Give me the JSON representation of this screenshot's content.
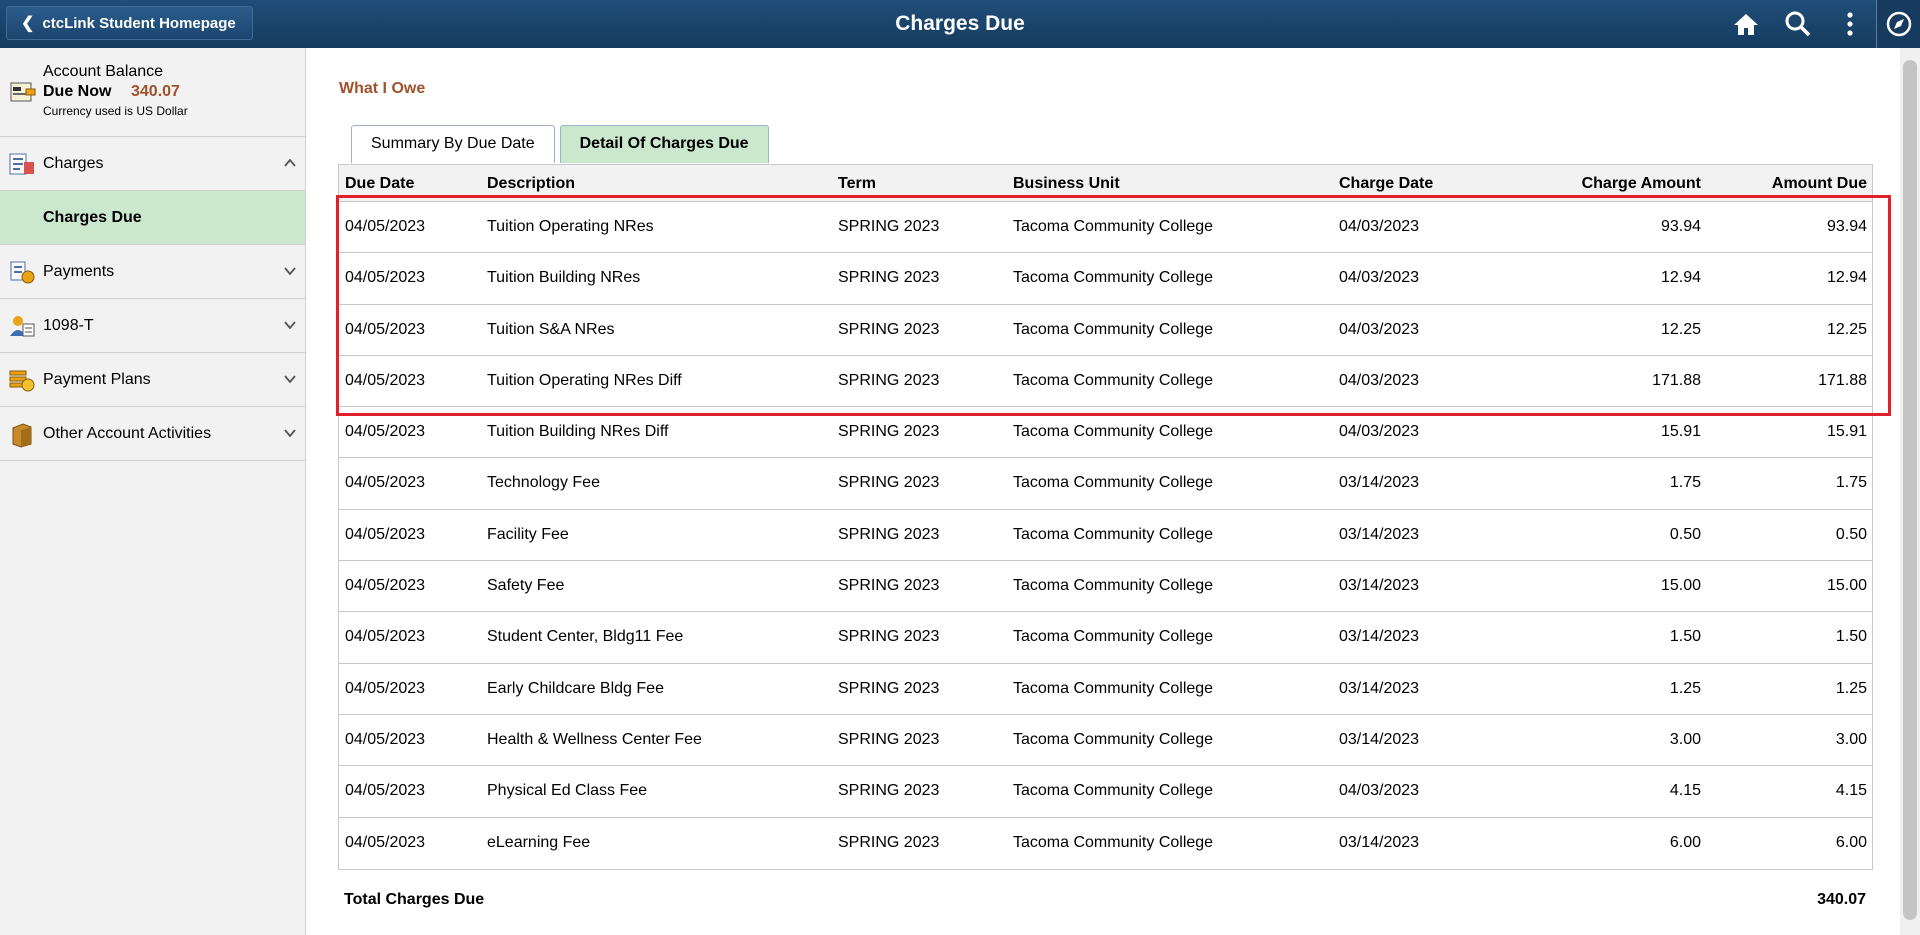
{
  "header": {
    "back_label": "ctcLink Student Homepage",
    "title": "Charges Due",
    "icons": [
      "home-icon",
      "search-icon",
      "more-vertical-icon",
      "navbar-compass-icon"
    ]
  },
  "sidebar": {
    "balance": {
      "title": "Account Balance",
      "due_now_label": "Due Now",
      "due_now_amount": "340.07",
      "currency_note": "Currency used is US Dollar"
    },
    "items": [
      {
        "label": "Charges",
        "icon": "charges-icon",
        "state": "expanded"
      },
      {
        "label": "Charges Due",
        "icon": "",
        "state": "selected"
      },
      {
        "label": "Payments",
        "icon": "payments-icon",
        "state": "collapsed"
      },
      {
        "label": "1098-T",
        "icon": "tax-form-icon",
        "state": "collapsed"
      },
      {
        "label": "Payment Plans",
        "icon": "payment-plans-icon",
        "state": "collapsed"
      },
      {
        "label": "Other Account Activities",
        "icon": "other-activities-icon",
        "state": "collapsed"
      }
    ]
  },
  "main": {
    "section_title": "What I Owe",
    "tabs": [
      {
        "label": "Summary By Due Date",
        "active": false
      },
      {
        "label": "Detail Of Charges Due",
        "active": true
      }
    ],
    "columns": [
      "Due Date",
      "Description",
      "Term",
      "Business Unit",
      "Charge Date",
      "Charge Amount",
      "Amount Due"
    ],
    "rows": [
      [
        "04/05/2023",
        "Tuition Operating NRes",
        "SPRING 2023",
        "Tacoma Community College",
        "04/03/2023",
        "93.94",
        "93.94"
      ],
      [
        "04/05/2023",
        "Tuition Building NRes",
        "SPRING 2023",
        "Tacoma Community College",
        "04/03/2023",
        "12.94",
        "12.94"
      ],
      [
        "04/05/2023",
        "Tuition S&A NRes",
        "SPRING 2023",
        "Tacoma Community College",
        "04/03/2023",
        "12.25",
        "12.25"
      ],
      [
        "04/05/2023",
        "Tuition Operating NRes Diff",
        "SPRING 2023",
        "Tacoma Community College",
        "04/03/2023",
        "171.88",
        "171.88"
      ],
      [
        "04/05/2023",
        "Tuition Building NRes Diff",
        "SPRING 2023",
        "Tacoma Community College",
        "04/03/2023",
        "15.91",
        "15.91"
      ],
      [
        "04/05/2023",
        "Technology Fee",
        "SPRING 2023",
        "Tacoma Community College",
        "03/14/2023",
        "1.75",
        "1.75"
      ],
      [
        "04/05/2023",
        "Facility Fee",
        "SPRING 2023",
        "Tacoma Community College",
        "03/14/2023",
        "0.50",
        "0.50"
      ],
      [
        "04/05/2023",
        "Safety Fee",
        "SPRING 2023",
        "Tacoma Community College",
        "03/14/2023",
        "15.00",
        "15.00"
      ],
      [
        "04/05/2023",
        "Student Center, Bldg11 Fee",
        "SPRING 2023",
        "Tacoma Community College",
        "03/14/2023",
        "1.50",
        "1.50"
      ],
      [
        "04/05/2023",
        "Early Childcare Bldg Fee",
        "SPRING 2023",
        "Tacoma Community College",
        "03/14/2023",
        "1.25",
        "1.25"
      ],
      [
        "04/05/2023",
        "Health & Wellness Center Fee",
        "SPRING 2023",
        "Tacoma Community College",
        "03/14/2023",
        "3.00",
        "3.00"
      ],
      [
        "04/05/2023",
        "Physical Ed Class Fee",
        "SPRING 2023",
        "Tacoma Community College",
        "04/03/2023",
        "4.15",
        "4.15"
      ],
      [
        "04/05/2023",
        "eLearning Fee",
        "SPRING 2023",
        "Tacoma Community College",
        "03/14/2023",
        "6.00",
        "6.00"
      ]
    ],
    "total_label": "Total Charges Due",
    "total_value": "340.07"
  },
  "colors": {
    "header_bg": "#1f4e79",
    "selected_bg": "#cbe8cf",
    "accent_brown": "#a0522d",
    "highlight_red": "#e0202a"
  }
}
